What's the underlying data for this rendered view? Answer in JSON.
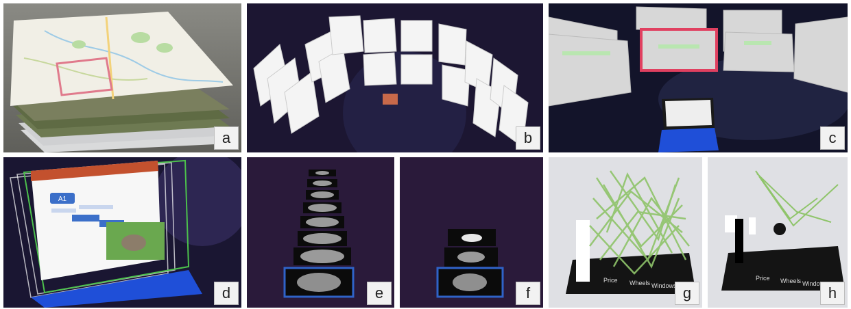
{
  "panels": [
    {
      "label": "a"
    },
    {
      "label": "b"
    },
    {
      "label": "c"
    },
    {
      "label": "d"
    },
    {
      "label": "e"
    },
    {
      "label": "f"
    },
    {
      "label": "g"
    },
    {
      "label": "h"
    }
  ],
  "doc_slide": {
    "badge_a1": "A1"
  },
  "chart_base_labels": {
    "g": [
      "Price",
      "Wheels",
      "Windows"
    ],
    "h": [
      "Price",
      "Wheels",
      "Windows"
    ]
  },
  "colors": {
    "space_dark": "#1a1530",
    "map_frame": "#e07a8c",
    "selected_frame": "#e04060",
    "keyboard_blue": "#1f4fd8",
    "line_green": "#8fc46a",
    "orange_tile": "#c8694a"
  }
}
